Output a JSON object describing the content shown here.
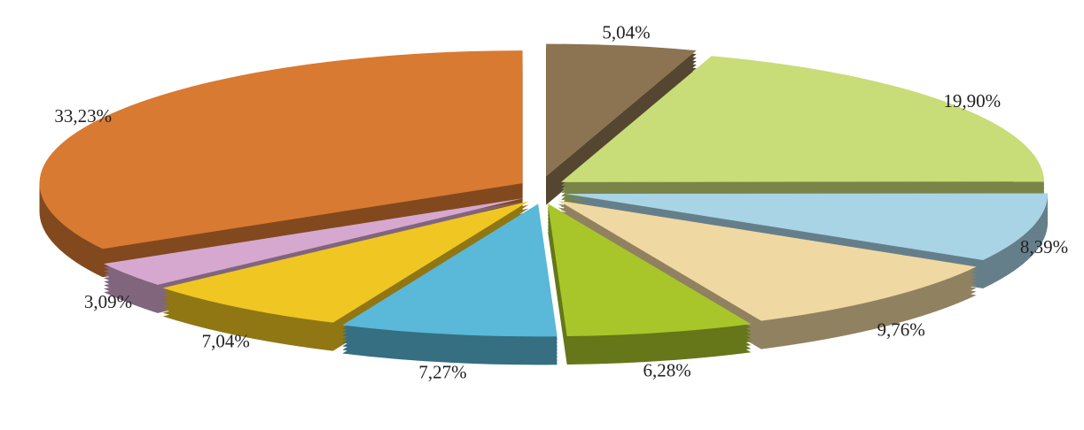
{
  "chart_data": {
    "type": "pie",
    "values": [
      5.04,
      19.9,
      8.39,
      9.76,
      6.28,
      7.27,
      7.04,
      3.09,
      33.23
    ],
    "value_labels": [
      "5,04%",
      "19,90%",
      "8,39%",
      "9,76%",
      "6,28%",
      "7,27%",
      "7,04%",
      "3,09%",
      "33,23%"
    ],
    "colors": [
      "#8c7452",
      "#c8dc78",
      "#a8d4e6",
      "#f0d8a2",
      "#a8c62a",
      "#5ab8d8",
      "#f0c622",
      "#d6a8d0",
      "#d87a32"
    ]
  }
}
